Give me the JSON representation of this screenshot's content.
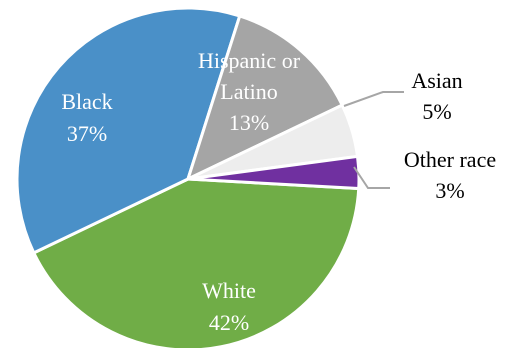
{
  "chart_data": {
    "type": "pie",
    "slices": [
      {
        "category": "White",
        "value": 42,
        "value_label": "42%",
        "color": "#70ad47",
        "label_lines": [
          "White"
        ],
        "label_color": "#ffffff"
      },
      {
        "category": "Black",
        "value": 37,
        "value_label": "37%",
        "color": "#4a90c8",
        "label_lines": [
          "Black"
        ],
        "label_color": "#ffffff"
      },
      {
        "category": "Hispanic or Latino",
        "value": 13,
        "value_label": "13%",
        "color": "#a5a5a5",
        "label_lines": [
          "Hispanic or",
          "Latino"
        ],
        "label_color": "#ffffff"
      },
      {
        "category": "Asian",
        "value": 5,
        "value_label": "5%",
        "color": "#ededed",
        "label_lines": [
          "Asian"
        ],
        "label_color": "#000000"
      },
      {
        "category": "Other race",
        "value": 3,
        "value_label": "3%",
        "color": "#7030a0",
        "label_lines": [
          "Other race"
        ],
        "label_color": "#000000"
      }
    ],
    "start_angle_deg": 3.2,
    "direction": "clockwise"
  }
}
